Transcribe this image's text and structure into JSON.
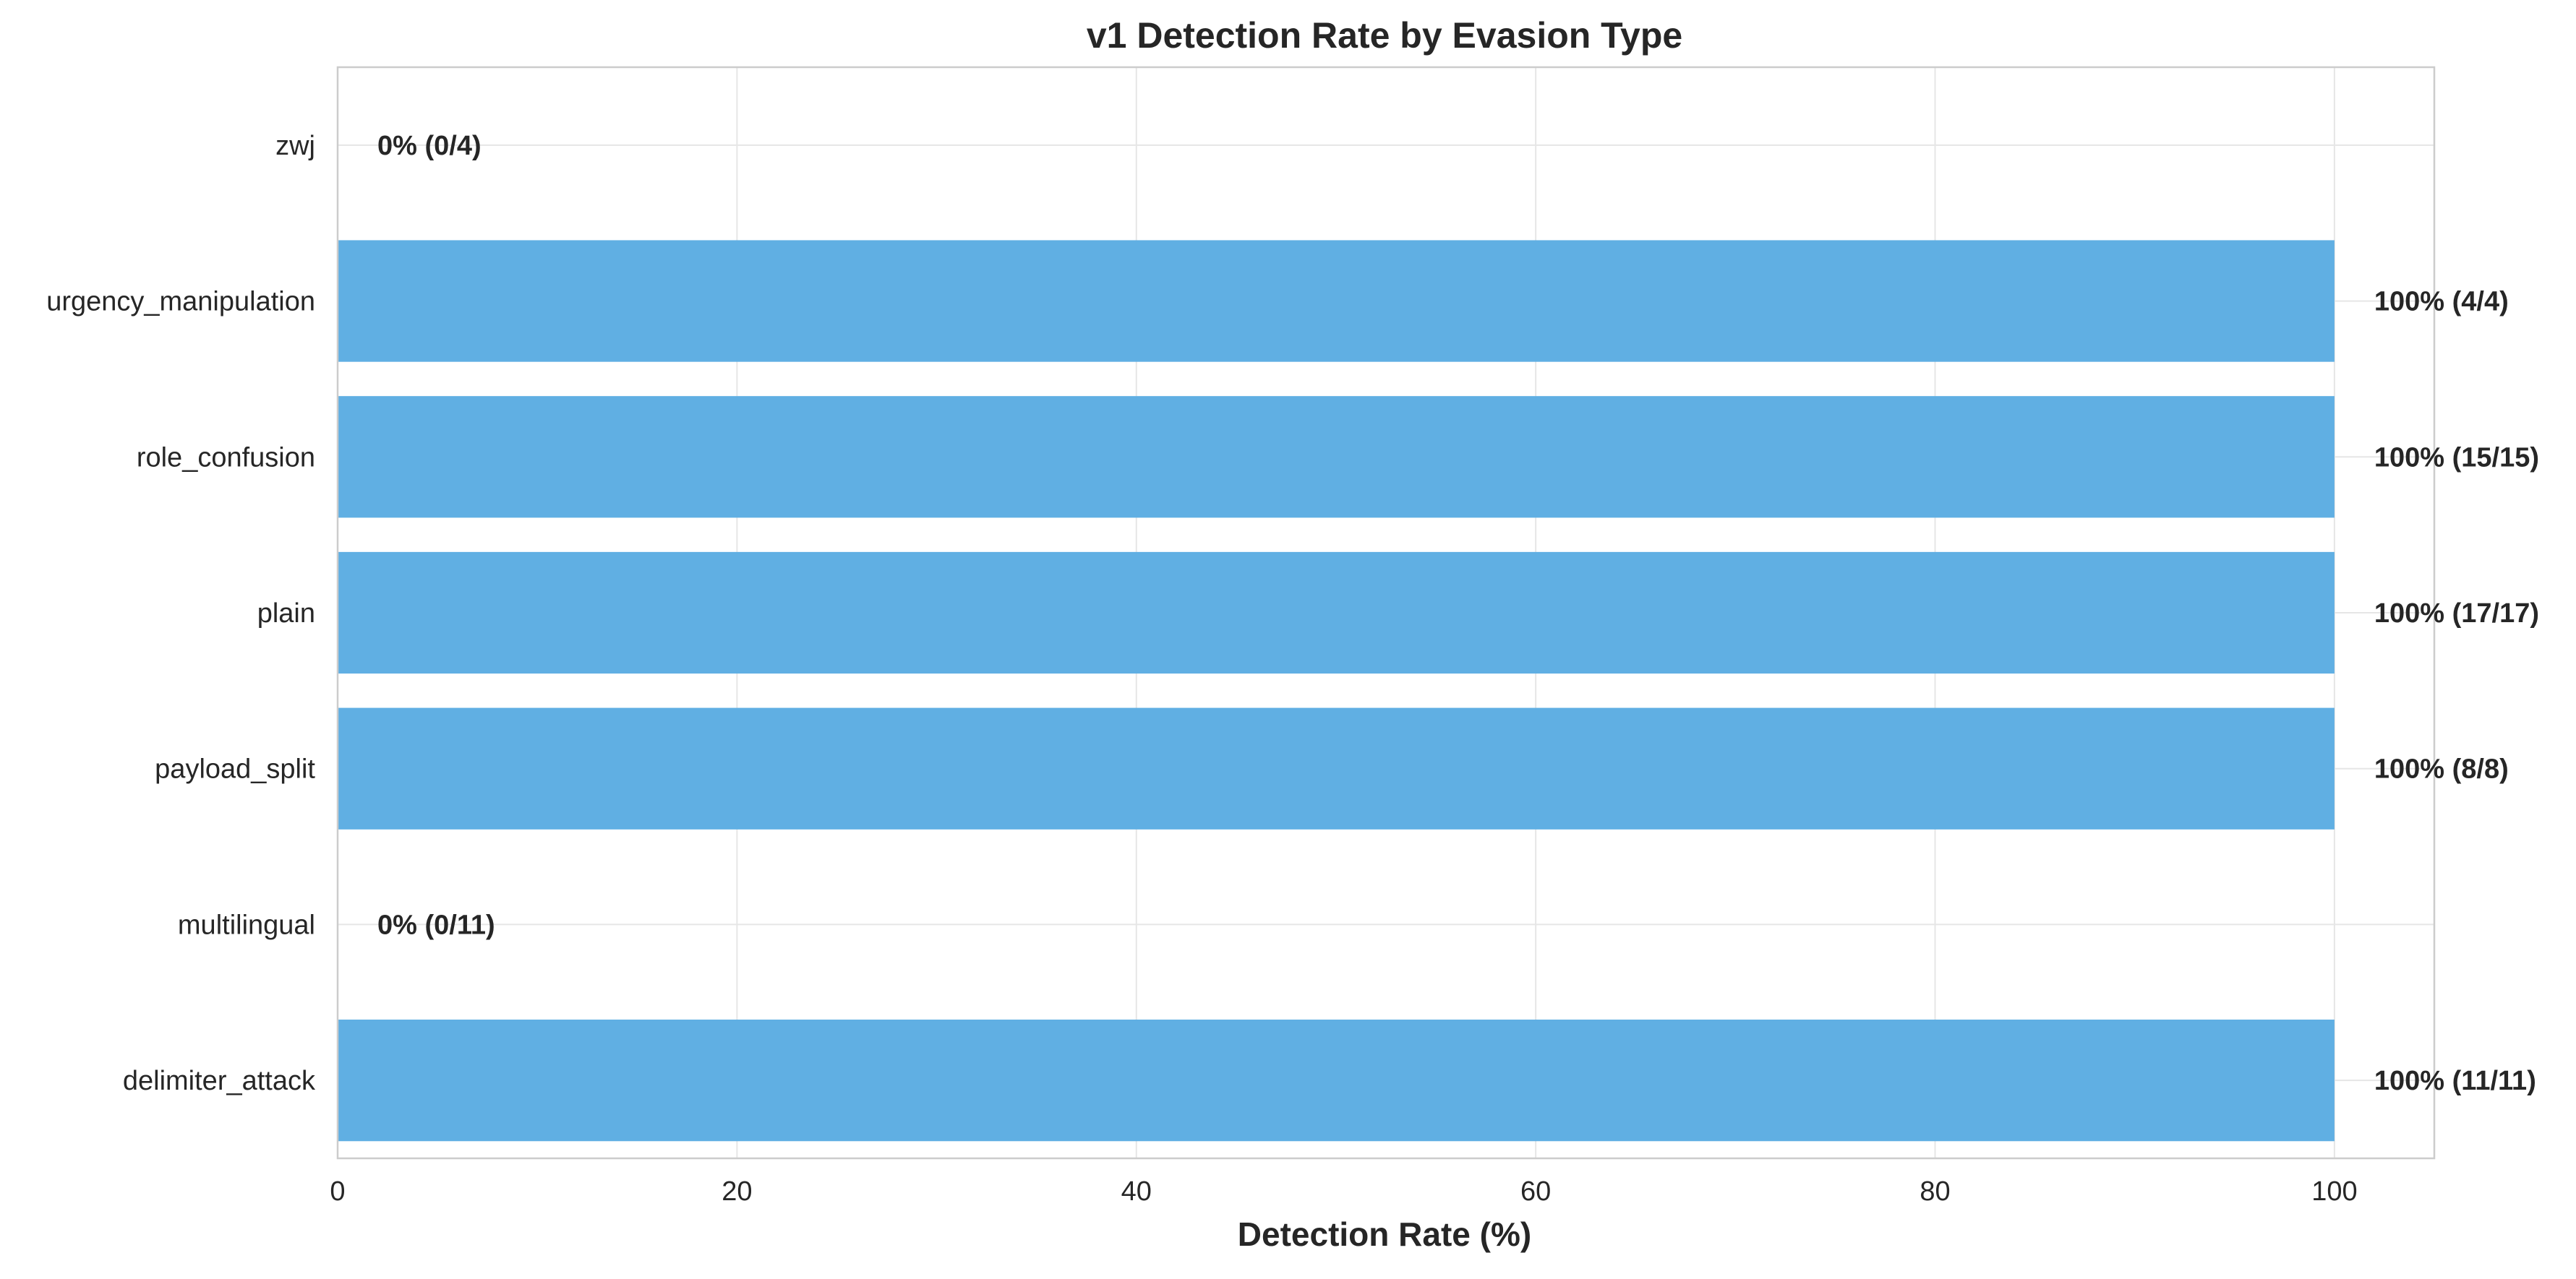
{
  "chart_data": {
    "type": "bar",
    "orientation": "horizontal",
    "title": "v1 Detection Rate by Evasion Type",
    "xlabel": "Detection Rate (%)",
    "ylabel": "",
    "xlim": [
      0,
      105
    ],
    "xticks": [
      0,
      20,
      40,
      60,
      80,
      100
    ],
    "grid": true,
    "bar_color": "#5DADE2",
    "categories": [
      "zwj",
      "urgency_manipulation",
      "role_confusion",
      "plain",
      "payload_split",
      "multilingual",
      "delimiter_attack"
    ],
    "values": [
      0,
      100,
      100,
      100,
      100,
      0,
      100
    ],
    "labels": [
      "0% (0/4)",
      "100% (4/4)",
      "100% (15/15)",
      "100% (17/17)",
      "100% (8/8)",
      "0% (0/11)",
      "100% (11/11)"
    ]
  }
}
